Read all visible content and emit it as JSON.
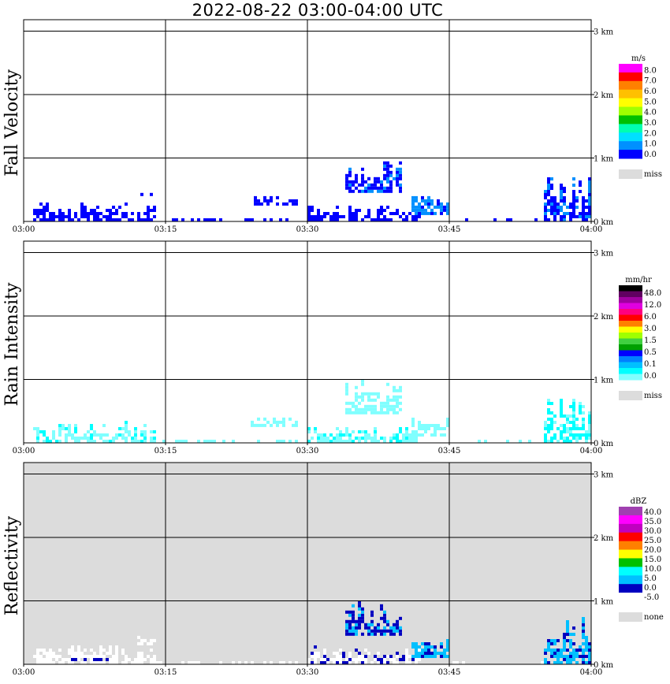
{
  "title": "2022-08-22   03:00-04:00 UTC",
  "x_ticks": [
    "03:00",
    "03:15",
    "03:30",
    "03:45",
    "04:00"
  ],
  "y_ticks": [
    "0 km",
    "1 km",
    "2 km",
    "3 km"
  ],
  "colors": {
    "no_echo_bg": "#dcdcdc",
    "grid": "#000000"
  },
  "chart_data": [
    {
      "type": "heatmap",
      "ylabel": "Fall Velocity",
      "xlim": [
        "03:00",
        "04:00"
      ],
      "ylim_km": [
        0,
        3.2
      ],
      "colorbar": {
        "unit": "m/s",
        "labels": [
          "8.0",
          "7.0",
          "6.0",
          "5.0",
          "4.0",
          "3.0",
          "2.0",
          "1.0",
          "0.0"
        ],
        "colors": [
          "#ff00ff",
          "#ff0000",
          "#ff8000",
          "#ffc000",
          "#ffff00",
          "#a0ff00",
          "#00c000",
          "#00ffb0",
          "#00e0ff",
          "#0090ff",
          "#0000ff"
        ],
        "missing_label": "miss"
      },
      "echo_regions": [
        {
          "t0": "03:01",
          "t1": "03:14",
          "h0": 0.0,
          "h1": 0.35,
          "value": "0.0-1.0"
        },
        {
          "t0": "03:12",
          "t1": "03:14",
          "h0": 0.4,
          "h1": 0.5,
          "value": "0.0-1.0"
        },
        {
          "t0": "03:14",
          "t1": "03:29",
          "h0": 0.0,
          "h1": 0.08,
          "value": "0.0-1.0"
        },
        {
          "t0": "03:24",
          "t1": "03:29",
          "h0": 0.25,
          "h1": 0.45,
          "value": "0.0-1.0"
        },
        {
          "t0": "03:30",
          "t1": "03:42",
          "h0": 0.0,
          "h1": 0.3,
          "value": "0.0-1.0"
        },
        {
          "t0": "03:34",
          "t1": "03:40",
          "h0": 0.45,
          "h1": 1.0,
          "value": "0.0-2.0"
        },
        {
          "t0": "03:41",
          "t1": "03:45",
          "h0": 0.1,
          "h1": 0.45,
          "value": "1.0-2.0"
        },
        {
          "t0": "03:45",
          "t1": "03:55",
          "h0": 0.0,
          "h1": 0.06,
          "value": "0.0-1.0"
        },
        {
          "t0": "03:55",
          "t1": "04:00",
          "h0": 0.0,
          "h1": 0.75,
          "value": "0.0-1.0"
        }
      ]
    },
    {
      "type": "heatmap",
      "ylabel": "Rain Intensity",
      "xlim": [
        "03:00",
        "04:00"
      ],
      "ylim_km": [
        0,
        3.2
      ],
      "colorbar": {
        "unit": "mm/hr",
        "labels": [
          "48.0",
          "12.0",
          "6.0",
          "3.0",
          "1.5",
          "0.5",
          "0.1",
          "0.0"
        ],
        "colors": [
          "#000000",
          "#600060",
          "#a000a0",
          "#e000e0",
          "#ff0080",
          "#ff0000",
          "#ff8000",
          "#ffff00",
          "#a0ff00",
          "#40d040",
          "#00a000",
          "#0000ff",
          "#0080ff",
          "#00c0ff",
          "#00ffff",
          "#80ffff"
        ],
        "missing_label": "miss"
      },
      "echo_regions": [
        {
          "t0": "03:01",
          "t1": "03:14",
          "h0": 0.0,
          "h1": 0.35,
          "value": "0.0-0.1"
        },
        {
          "t0": "03:12",
          "t1": "03:14",
          "h0": 0.4,
          "h1": 0.5,
          "value": "0.0-0.1"
        },
        {
          "t0": "03:14",
          "t1": "03:29",
          "h0": 0.0,
          "h1": 0.08,
          "value": "0.0-0.1"
        },
        {
          "t0": "03:24",
          "t1": "03:29",
          "h0": 0.25,
          "h1": 0.45,
          "value": "0.0-0.1"
        },
        {
          "t0": "03:30",
          "t1": "03:42",
          "h0": 0.0,
          "h1": 0.3,
          "value": "0.0-0.1"
        },
        {
          "t0": "03:34",
          "t1": "03:40",
          "h0": 0.45,
          "h1": 1.0,
          "value": "0.0-0.1"
        },
        {
          "t0": "03:41",
          "t1": "03:45",
          "h0": 0.1,
          "h1": 0.45,
          "value": "0.0-0.1"
        },
        {
          "t0": "03:45",
          "t1": "03:55",
          "h0": 0.0,
          "h1": 0.06,
          "value": "0.0-0.1"
        },
        {
          "t0": "03:55",
          "t1": "04:00",
          "h0": 0.0,
          "h1": 0.75,
          "value": "0.1"
        }
      ]
    },
    {
      "type": "heatmap",
      "ylabel": "Reflectivity",
      "xlim": [
        "03:00",
        "04:00"
      ],
      "ylim_km": [
        0,
        3.2
      ],
      "background": "none",
      "colorbar": {
        "unit": "dBZ",
        "labels": [
          "40.0",
          "35.0",
          "30.0",
          "25.0",
          "20.0",
          "15.0",
          "10.0",
          "5.0",
          "0.0",
          "-5.0"
        ],
        "colors": [
          "#a040b0",
          "#ff00ff",
          "#c000c0",
          "#ff0000",
          "#ff8000",
          "#ffff00",
          "#00c000",
          "#00ffff",
          "#00c0ff",
          "#0000c0",
          "#ffffff"
        ],
        "missing_label": "none"
      },
      "echo_regions": [
        {
          "t0": "03:01",
          "t1": "03:14",
          "h0": 0.0,
          "h1": 0.35,
          "value": "below -5.0"
        },
        {
          "t0": "03:05",
          "t1": "03:09",
          "h0": 0.05,
          "h1": 0.15,
          "value": "-5.0-0.0"
        },
        {
          "t0": "03:12",
          "t1": "03:14",
          "h0": 0.3,
          "h1": 0.5,
          "value": "below -5.0"
        },
        {
          "t0": "03:14",
          "t1": "03:29",
          "h0": 0.0,
          "h1": 0.08,
          "value": "below -5.0"
        },
        {
          "t0": "03:30",
          "t1": "03:42",
          "h0": 0.0,
          "h1": 0.3,
          "value": "below -5.0"
        },
        {
          "t0": "03:34",
          "t1": "03:40",
          "h0": 0.45,
          "h1": 1.0,
          "value": "-5.0-5.0"
        },
        {
          "t0": "03:41",
          "t1": "03:45",
          "h0": 0.1,
          "h1": 0.45,
          "value": "0.0-10.0"
        },
        {
          "t0": "03:45",
          "t1": "03:55",
          "h0": 0.0,
          "h1": 0.06,
          "value": "below -5.0"
        },
        {
          "t0": "03:55",
          "t1": "04:00",
          "h0": 0.0,
          "h1": 0.75,
          "value": "-5.0-5.0"
        }
      ]
    }
  ]
}
